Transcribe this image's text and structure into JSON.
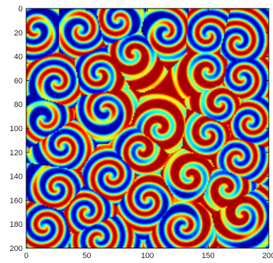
{
  "chart_data": {
    "type": "heatmap",
    "title": "",
    "xlabel": "",
    "ylabel": "",
    "colormap": "jet",
    "xlim": [
      0,
      200
    ],
    "ylim": [
      0,
      200
    ],
    "y_axis_direction": "top-to-bottom",
    "grid": false,
    "legend": "none",
    "x_ticks": [
      0,
      50,
      100,
      150,
      200
    ],
    "x_tick_labels": [
      "0",
      "50",
      "100",
      "150",
      "200"
    ],
    "y_ticks": [
      0,
      20,
      40,
      60,
      80,
      100,
      120,
      140,
      160,
      180,
      200
    ],
    "y_tick_labels": [
      "0",
      "20",
      "40",
      "60",
      "80",
      "100",
      "120",
      "140",
      "160",
      "180",
      "200"
    ],
    "colors": {
      "low": "#00007f",
      "mid": "#7fff7f",
      "high": "#7f0000",
      "axis": "#000000"
    },
    "field_description": "spiral wave pattern",
    "spiral_cores": [
      {
        "x": 8,
        "y": 18
      },
      {
        "x": 45,
        "y": 18
      },
      {
        "x": 76,
        "y": 10
      },
      {
        "x": 115,
        "y": 20
      },
      {
        "x": 150,
        "y": 22
      },
      {
        "x": 175,
        "y": 28
      },
      {
        "x": 88,
        "y": 38
      },
      {
        "x": 25,
        "y": 62
      },
      {
        "x": 60,
        "y": 55
      },
      {
        "x": 150,
        "y": 52
      },
      {
        "x": 178,
        "y": 58
      },
      {
        "x": 15,
        "y": 92
      },
      {
        "x": 65,
        "y": 85
      },
      {
        "x": 110,
        "y": 100
      },
      {
        "x": 160,
        "y": 80
      },
      {
        "x": 185,
        "y": 95
      },
      {
        "x": 30,
        "y": 115
      },
      {
        "x": 95,
        "y": 118
      },
      {
        "x": 150,
        "y": 105
      },
      {
        "x": 175,
        "y": 125
      },
      {
        "x": 25,
        "y": 150
      },
      {
        "x": 70,
        "y": 140
      },
      {
        "x": 135,
        "y": 140
      },
      {
        "x": 165,
        "y": 150
      },
      {
        "x": 15,
        "y": 182
      },
      {
        "x": 50,
        "y": 170
      },
      {
        "x": 100,
        "y": 160
      },
      {
        "x": 130,
        "y": 182
      },
      {
        "x": 178,
        "y": 172
      },
      {
        "x": 60,
        "y": 192
      }
    ],
    "high_plateaus": [
      {
        "x": 130,
        "y": 70
      },
      {
        "x": 95,
        "y": 60
      },
      {
        "x": 160,
        "y": 170
      },
      {
        "x": 120,
        "y": 125
      }
    ],
    "low_basins": [
      {
        "x": 25,
        "y": 10
      },
      {
        "x": 100,
        "y": 10
      },
      {
        "x": 10,
        "y": 80
      },
      {
        "x": 65,
        "y": 100
      },
      {
        "x": 5,
        "y": 130
      },
      {
        "x": 130,
        "y": 165
      },
      {
        "x": 190,
        "y": 195
      }
    ]
  }
}
